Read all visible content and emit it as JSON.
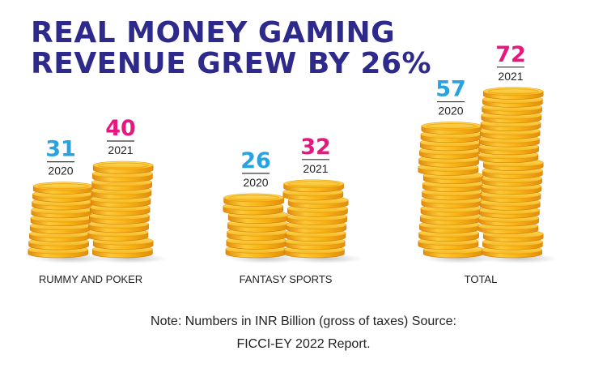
{
  "title_lines": [
    "REAL MONEY GAMING",
    "REVENUE GREW BY 26%"
  ],
  "note_lines": [
    "Note: Numbers in INR Billion (gross of taxes) Source:",
    "FICCI-EY 2022 Report."
  ],
  "colors": {
    "title": "#2e2a8c",
    "value_2020": "#29a3e0",
    "value_2021": "#e6177e",
    "coin": "#f9b414"
  },
  "chart_data": {
    "type": "bar",
    "categories": [
      "RUMMY AND POKER",
      "FANTASY SPORTS",
      "TOTAL"
    ],
    "series": [
      {
        "name": "2020",
        "values": [
          31,
          26,
          57
        ]
      },
      {
        "name": "2021",
        "values": [
          40,
          32,
          72
        ]
      }
    ],
    "value_labels": [
      [
        "31",
        "26",
        "57"
      ],
      [
        "40",
        "32",
        "72"
      ]
    ],
    "xlabel": "",
    "ylabel": ""
  }
}
